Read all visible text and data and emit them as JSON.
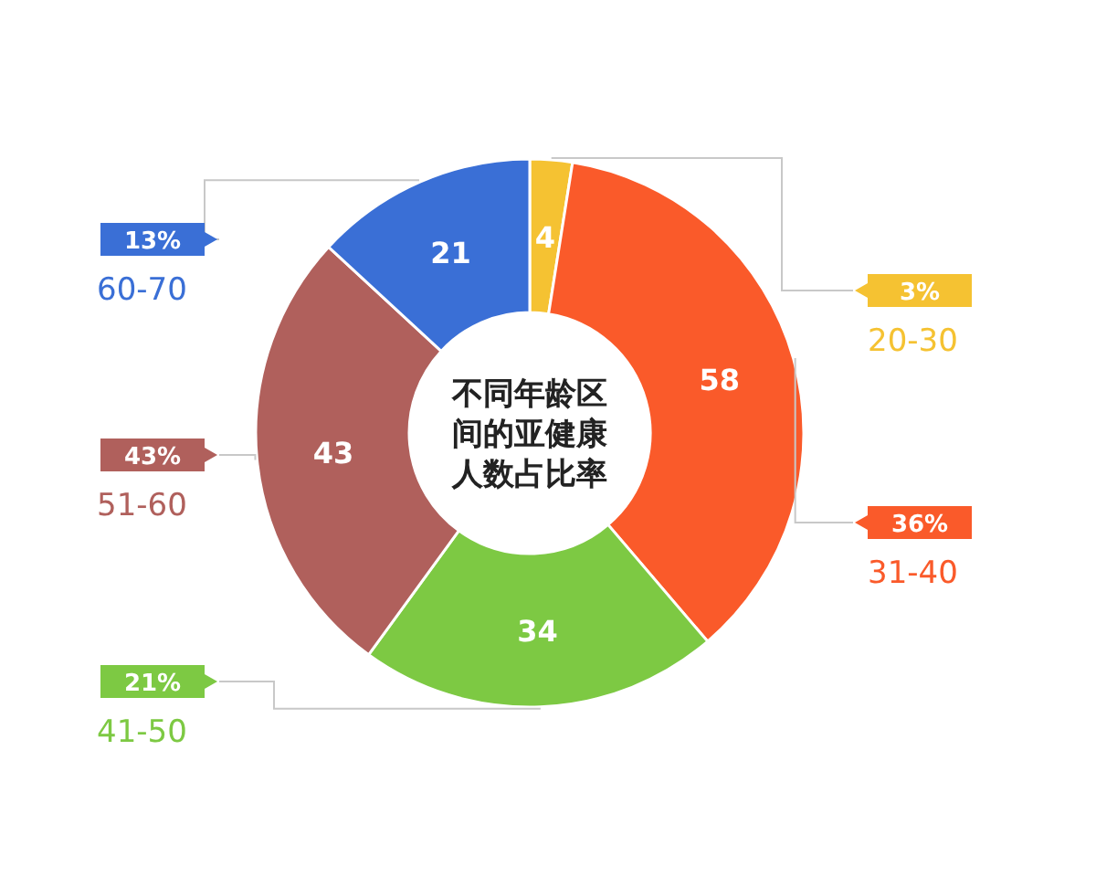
{
  "chart_data": {
    "type": "donut",
    "title": "不同年龄区间的亚健康人数占比率",
    "categories": [
      "20-30",
      "31-40",
      "41-50",
      "51-60",
      "60-70"
    ],
    "values": [
      4,
      58,
      34,
      43,
      21
    ],
    "colors": [
      "#f5c232",
      "#fa5a2a",
      "#7dc943",
      "#b0605c",
      "#3a6fd6"
    ],
    "data_labels": true,
    "legend": "left",
    "annotations": [
      {
        "text": "3%",
        "x": "20-30"
      },
      {
        "text": "36%",
        "x": "31-40"
      },
      {
        "text": "21%",
        "x": "41-50"
      },
      {
        "text": "43%",
        "x": "51-60"
      },
      {
        "text": "13%",
        "x": "60-70"
      }
    ]
  }
}
